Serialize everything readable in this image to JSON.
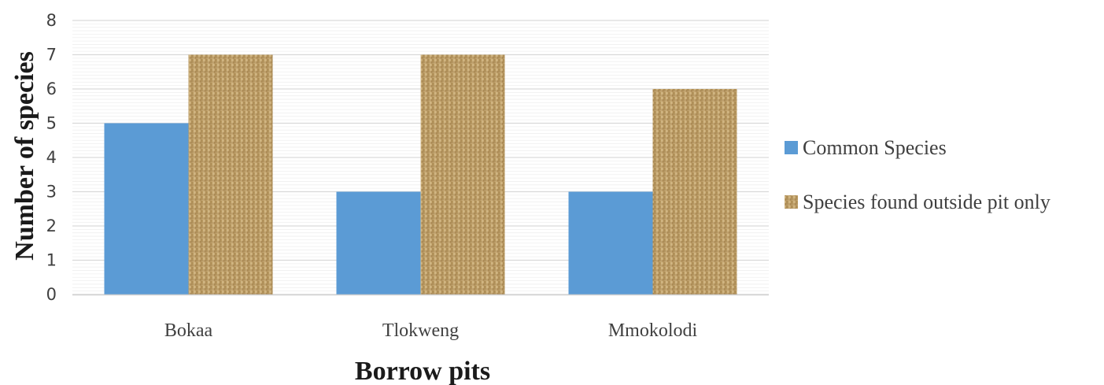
{
  "chart_data": {
    "type": "bar",
    "title": "",
    "xlabel": "Borrow pits",
    "ylabel": "Number of species",
    "categories": [
      "Bokaa",
      "Tlokweng",
      "Mmokolodi"
    ],
    "series": [
      {
        "name": "Common Species",
        "values": [
          5,
          3,
          3
        ],
        "color": "#5b9bd5",
        "fill": "solid"
      },
      {
        "name": "Species found outside pit only",
        "values": [
          7,
          7,
          6
        ],
        "color": "#c2a46f",
        "fill": "burlap-texture"
      }
    ],
    "ylim": [
      0,
      8
    ],
    "yticks": [
      0,
      1,
      2,
      3,
      4,
      5,
      6,
      7,
      8
    ],
    "grid": true,
    "legend": "right"
  }
}
